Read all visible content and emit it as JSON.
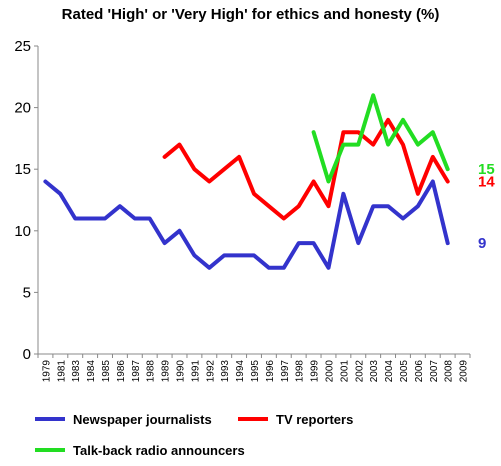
{
  "chart_data": {
    "type": "line",
    "title": "Rated 'High' or 'Very High' for ethics and honesty (%)",
    "xlabel": "",
    "ylabel": "",
    "ylim": [
      0,
      25
    ],
    "yticks": [
      0,
      5,
      10,
      15,
      20,
      25
    ],
    "grid": false,
    "legend_position": "bottom",
    "x": [
      1979,
      1981,
      1983,
      1984,
      1985,
      1986,
      1987,
      1988,
      1989,
      1990,
      1991,
      1992,
      1993,
      1994,
      1995,
      1996,
      1997,
      1998,
      1999,
      2000,
      2001,
      2002,
      2003,
      2004,
      2005,
      2006,
      2007,
      2008,
      2009
    ],
    "x_labels": [
      "1979",
      "1981",
      "1983",
      "1984",
      "1985",
      "1986",
      "1987",
      "1988",
      "1989",
      "1990",
      "1991",
      "1992",
      "1993",
      "1994",
      "1995",
      "1996",
      "1997",
      "1998",
      "1999",
      "2000",
      "2001",
      "2002",
      "2003",
      "2004",
      "2005",
      "2006",
      "2007",
      "2008",
      "2009"
    ],
    "series": [
      {
        "name": "Newspaper journalists",
        "color": "#3333cc",
        "end_label": "9",
        "values": [
          14,
          13,
          11,
          11,
          11,
          12,
          11,
          11,
          9,
          10,
          8,
          7,
          8,
          8,
          8,
          7,
          7,
          9,
          9,
          7,
          13,
          9,
          12,
          12,
          11,
          12,
          14,
          9,
          null
        ]
      },
      {
        "name": "TV reporters",
        "color": "#ff0000",
        "end_label": "14",
        "values": [
          null,
          null,
          null,
          null,
          null,
          null,
          null,
          null,
          16,
          17,
          15,
          14,
          15,
          16,
          13,
          12,
          11,
          12,
          14,
          12,
          18,
          18,
          17,
          19,
          17,
          13,
          16,
          14,
          null
        ]
      },
      {
        "name": "Talk-back radio announcers",
        "color": "#22dd22",
        "end_label": "15",
        "values": [
          null,
          null,
          null,
          null,
          null,
          null,
          null,
          null,
          null,
          null,
          null,
          null,
          null,
          null,
          null,
          null,
          null,
          null,
          18,
          14,
          17,
          17,
          21,
          17,
          19,
          17,
          18,
          15,
          null
        ]
      }
    ]
  }
}
